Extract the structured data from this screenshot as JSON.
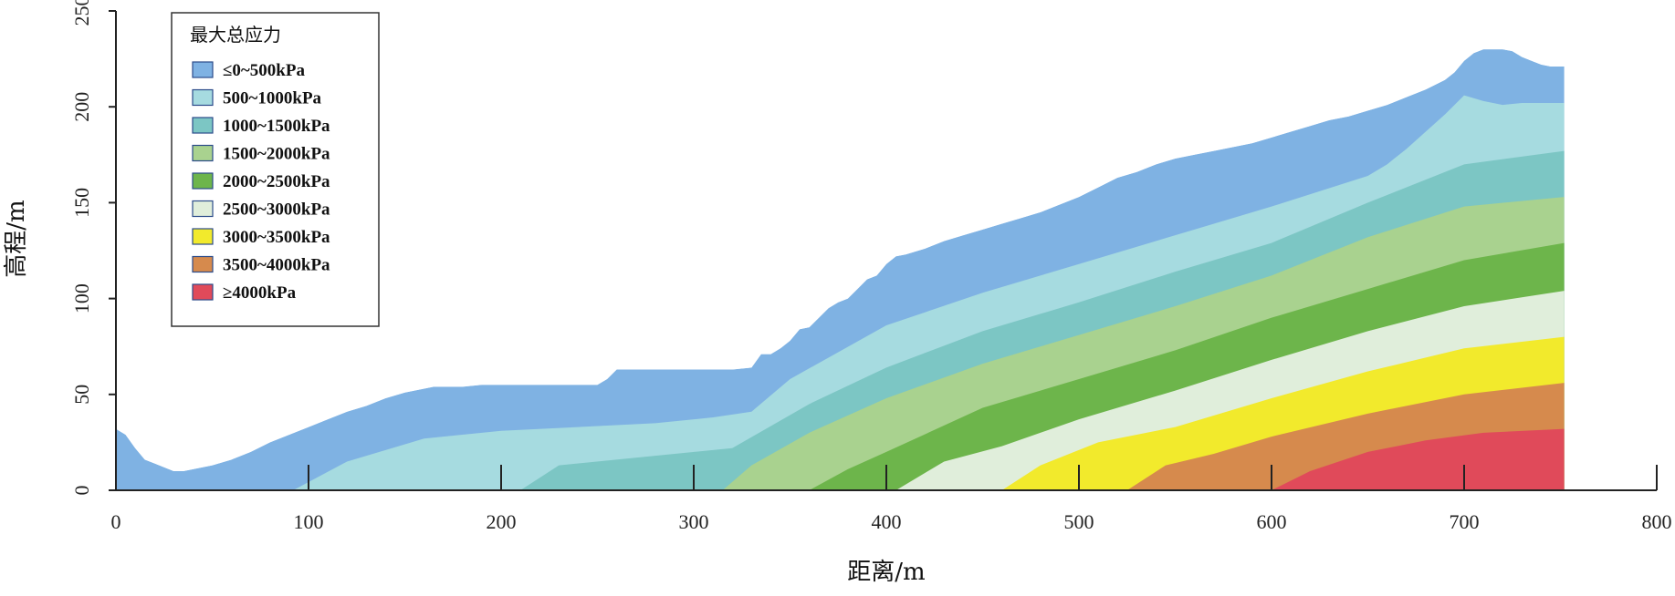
{
  "chart_data": {
    "type": "area",
    "xlabel": "距离/m",
    "ylabel": "高程/m",
    "xlim": [
      0,
      800
    ],
    "ylim": [
      0,
      250
    ],
    "xticks": [
      "0",
      "100",
      "200",
      "300",
      "400",
      "500",
      "600",
      "700",
      "800"
    ],
    "yticks": [
      "0",
      "50",
      "100",
      "150",
      "200",
      "250"
    ],
    "grid": false,
    "legend": {
      "title": "最大总应力",
      "placement": "top-left",
      "entries": [
        {
          "label": "≤0~500kPa",
          "color": "#7fb2e3"
        },
        {
          "label": "500~1000kPa",
          "color": "#a6dbe0"
        },
        {
          "label": "1000~1500kPa",
          "color": "#7cc6c4"
        },
        {
          "label": "1500~2000kPa",
          "color": "#a9d28f"
        },
        {
          "label": "2000~2500kPa",
          "color": "#6db54b"
        },
        {
          "label": "2500~3000kPa",
          "color": "#e0eedb"
        },
        {
          "label": "3000~3500kPa",
          "color": "#f2ea2c"
        },
        {
          "label": "3500~4000kPa",
          "color": "#d68a4d"
        },
        {
          "label": "≥4000kPa",
          "color": "#e04a5a"
        }
      ]
    },
    "surface_profile": {
      "x": [
        0,
        5,
        10,
        15,
        20,
        25,
        30,
        35,
        40,
        50,
        60,
        70,
        80,
        90,
        100,
        110,
        120,
        130,
        140,
        150,
        160,
        165,
        170,
        180,
        190,
        200,
        210,
        220,
        230,
        240,
        250,
        255,
        260,
        270,
        280,
        290,
        300,
        310,
        320,
        330,
        335,
        340,
        345,
        350,
        355,
        360,
        365,
        370,
        375,
        380,
        385,
        390,
        395,
        400,
        405,
        410,
        420,
        430,
        440,
        450,
        460,
        470,
        480,
        490,
        500,
        510,
        520,
        530,
        540,
        550,
        560,
        570,
        580,
        590,
        600,
        610,
        620,
        630,
        640,
        650,
        660,
        670,
        680,
        690,
        695,
        700,
        705,
        710,
        715,
        720,
        725,
        730,
        735,
        740,
        745,
        752
      ],
      "y": [
        32,
        29,
        22,
        16,
        14,
        12,
        10,
        10,
        11,
        13,
        16,
        20,
        25,
        29,
        33,
        37,
        41,
        44,
        48,
        51,
        53,
        54,
        54,
        54,
        55,
        55,
        55,
        55,
        55,
        55,
        55,
        58,
        63,
        63,
        63,
        63,
        63,
        63,
        63,
        64,
        71,
        71,
        74,
        78,
        84,
        85,
        90,
        95,
        98,
        100,
        105,
        110,
        112,
        118,
        122,
        123,
        126,
        130,
        133,
        136,
        139,
        142,
        145,
        149,
        153,
        158,
        163,
        166,
        170,
        173,
        175,
        177,
        179,
        181,
        184,
        187,
        190,
        193,
        195,
        198,
        201,
        205,
        209,
        214,
        218,
        224,
        228,
        230,
        230,
        230,
        229,
        226,
        224,
        222,
        221,
        221
      ]
    },
    "stress_band_tops": [
      {
        "band": "500~1000kPa",
        "x": [
          0,
          60,
          92,
          120,
          160,
          200,
          240,
          280,
          310,
          330,
          350,
          400,
          450,
          500,
          550,
          600,
          650,
          660,
          670,
          690,
          700,
          710,
          720,
          730,
          740,
          752
        ],
        "y": [
          0,
          0,
          0,
          15,
          27,
          31,
          33,
          35,
          38,
          41,
          58,
          86,
          103,
          118,
          133,
          148,
          164,
          170,
          178,
          196,
          206,
          203,
          201,
          202,
          202,
          202
        ]
      },
      {
        "band": "1000~1500kPa",
        "x": [
          210,
          230,
          280,
          320,
          360,
          400,
          450,
          500,
          550,
          600,
          650,
          700,
          752
        ],
        "y": [
          0,
          13,
          18,
          22,
          45,
          64,
          83,
          98,
          114,
          129,
          150,
          170,
          177
        ]
      },
      {
        "band": "1500~2000kPa",
        "x": [
          315,
          330,
          360,
          400,
          450,
          500,
          550,
          600,
          650,
          700,
          752
        ],
        "y": [
          0,
          13,
          30,
          48,
          66,
          81,
          96,
          112,
          132,
          148,
          153
        ]
      },
      {
        "band": "2000~2500kPa",
        "x": [
          360,
          380,
          400,
          450,
          500,
          550,
          600,
          650,
          700,
          752
        ],
        "y": [
          0,
          11,
          20,
          43,
          58,
          73,
          90,
          105,
          120,
          129
        ]
      },
      {
        "band": "2500~3000kPa",
        "x": [
          405,
          430,
          460,
          500,
          550,
          600,
          650,
          700,
          752
        ],
        "y": [
          0,
          15,
          23,
          37,
          52,
          68,
          83,
          96,
          104
        ]
      },
      {
        "band": "3000~3500kPa",
        "x": [
          460,
          480,
          510,
          550,
          600,
          650,
          700,
          752
        ],
        "y": [
          0,
          13,
          25,
          33,
          48,
          62,
          74,
          80
        ]
      },
      {
        "band": "3500~4000kPa",
        "x": [
          525,
          545,
          570,
          600,
          650,
          700,
          752
        ],
        "y": [
          0,
          13,
          19,
          28,
          40,
          50,
          56
        ]
      },
      {
        "band": "≥4000kPa",
        "x": [
          600,
          620,
          650,
          680,
          710,
          752
        ],
        "y": [
          0,
          10,
          20,
          26,
          30,
          32
        ]
      }
    ],
    "vertical_markers_x": [
      100,
      200,
      300,
      400,
      500,
      600,
      700
    ]
  }
}
